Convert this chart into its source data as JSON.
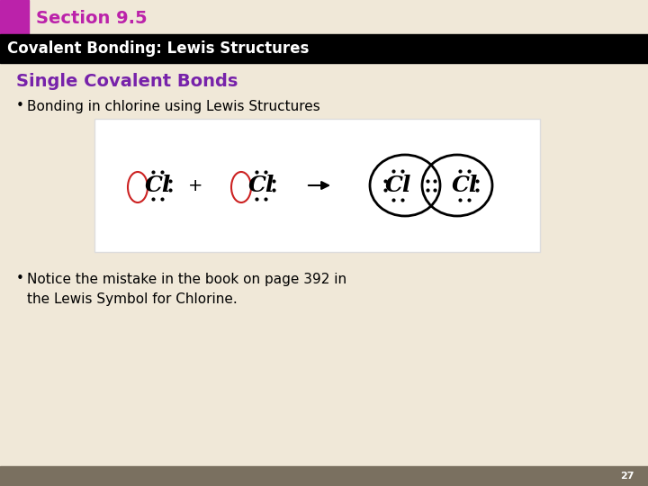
{
  "bg_color": "#f0e8d8",
  "header_bar_color": "#000000",
  "section_tab_color": "#bb22aa",
  "section_text": "Section 9.5",
  "header_text": "Covalent Bonding: Lewis Structures",
  "section_text_color": "#bb22aa",
  "header_text_color": "#ffffff",
  "subtitle": "Single Covalent Bonds",
  "subtitle_color": "#7722aa",
  "bullet1": "Bonding in chlorine using Lewis Structures",
  "bullet2_line1": "Notice the mistake in the book on page 392 in",
  "bullet2_line2": "the Lewis Symbol for Chlorine.",
  "bullet_color": "#000000",
  "image_bg": "#ffffff",
  "image_border": "#dddddd",
  "footer_color": "#7a7060",
  "page_number": "27"
}
